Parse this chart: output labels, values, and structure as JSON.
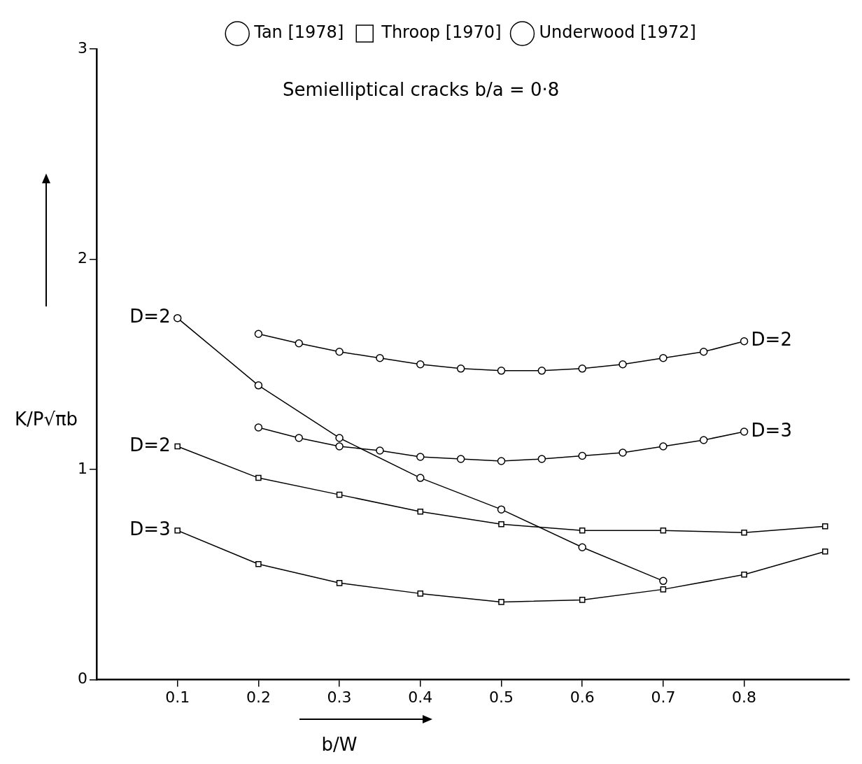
{
  "chart_data": {
    "type": "line",
    "xlabel": "b/W",
    "ylabel": "K/P√πb",
    "xlim": [
      0,
      0.93
    ],
    "ylim": [
      0,
      3
    ],
    "xticks": [
      0.1,
      0.2,
      0.3,
      0.4,
      0.5,
      0.6,
      0.7,
      0.8
    ],
    "yticks": [
      0,
      1,
      2,
      3
    ],
    "grid": false,
    "legend": "top",
    "line_style": "solid",
    "series": [
      {
        "name": "Tan [1978]",
        "color": "#000000",
        "marker": "circle",
        "x": [
          0.2,
          0.25,
          0.3,
          0.35,
          0.4,
          0.45,
          0.5,
          0.55,
          0.6,
          0.65,
          0.7,
          0.75,
          0.8
        ],
        "values": [
          1.645,
          1.6,
          1.56,
          1.53,
          1.5,
          1.48,
          1.47,
          1.47,
          1.48,
          1.5,
          1.53,
          1.56,
          1.61
        ]
      },
      {
        "color": "#000000",
        "marker": "circle",
        "x": [
          0.2,
          0.25,
          0.3,
          0.35,
          0.4,
          0.45,
          0.5,
          0.55,
          0.6,
          0.65,
          0.7,
          0.75,
          0.8
        ],
        "values": [
          1.2,
          1.15,
          1.11,
          1.09,
          1.06,
          1.05,
          1.04,
          1.05,
          1.065,
          1.08,
          1.11,
          1.14,
          1.18
        ]
      },
      {
        "name": "Throop [1970]",
        "color": "#000000",
        "marker": "square",
        "x": [
          0.1,
          0.2,
          0.3,
          0.4,
          0.5,
          0.6,
          0.7,
          0.8,
          0.9
        ],
        "values": [
          1.11,
          0.96,
          0.88,
          0.8,
          0.74,
          0.71,
          0.71,
          0.7,
          0.73
        ]
      },
      {
        "color": "#000000",
        "marker": "square",
        "x": [
          0.1,
          0.2,
          0.3,
          0.4,
          0.5,
          0.6,
          0.7,
          0.8,
          0.9
        ],
        "values": [
          0.71,
          0.55,
          0.46,
          0.41,
          0.37,
          0.38,
          0.43,
          0.5,
          0.61
        ]
      },
      {
        "name": "Underwood [1972]",
        "color": "#000000",
        "marker": "circle",
        "x": [
          0.1,
          0.2,
          0.3,
          0.4,
          0.5,
          0.6,
          0.7
        ],
        "values": [
          1.72,
          1.4,
          1.15,
          0.96,
          0.81,
          0.63,
          0.47
        ]
      }
    ],
    "annotations": [
      "Semielliptical cracks b/a = 0·8",
      "D=2",
      "D=3",
      "D=2",
      "D=2",
      "D=3"
    ]
  }
}
